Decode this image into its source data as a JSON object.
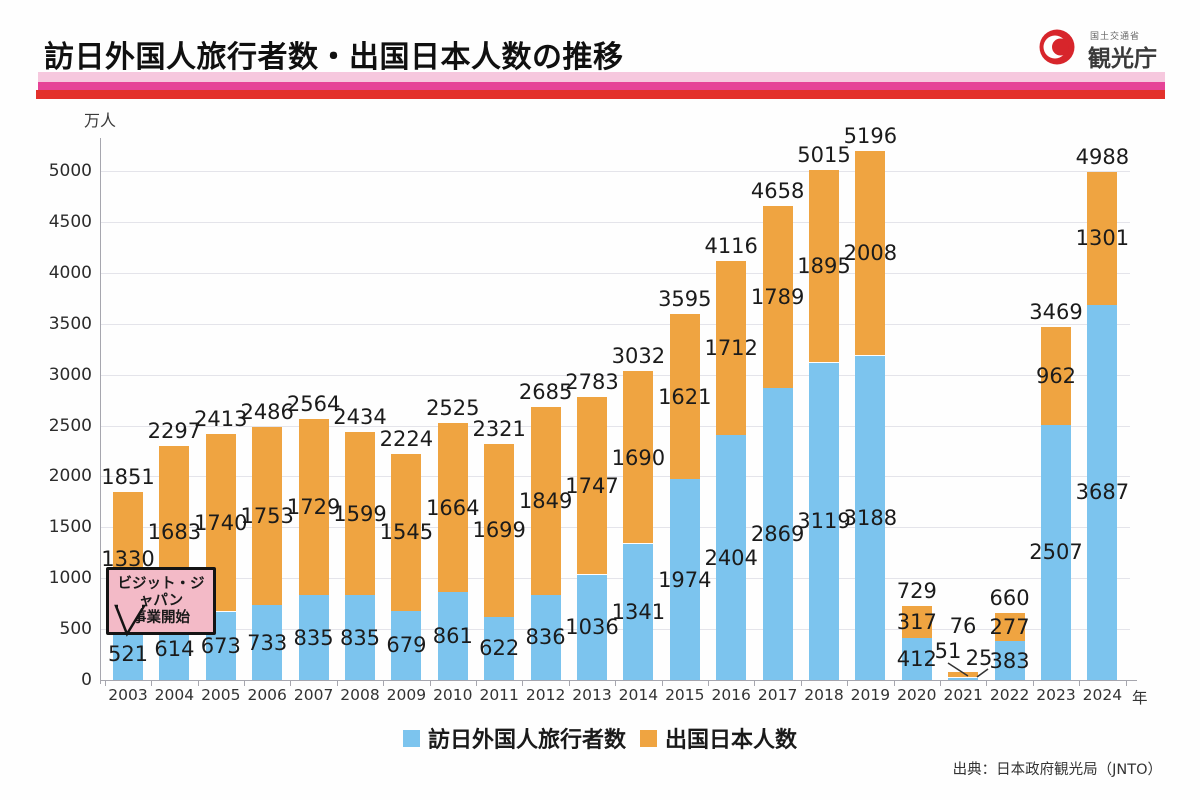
{
  "header": {
    "title": "訪日外国人旅行者数・出国日本人数の推移",
    "logo": {
      "ministry": "国土交通省",
      "agency": "観光庁"
    }
  },
  "chart": {
    "unit_label": "万人",
    "x_axis_suffix": "年",
    "callout": {
      "line1": "ビジット・ジャパン",
      "line2": "事業開始"
    }
  },
  "chart_data": {
    "type": "bar",
    "stacked": true,
    "title": "訪日外国人旅行者数・出国日本人数の推移",
    "categories": [
      2003,
      2004,
      2005,
      2006,
      2007,
      2008,
      2009,
      2010,
      2011,
      2012,
      2013,
      2014,
      2015,
      2016,
      2017,
      2018,
      2019,
      2020,
      2021,
      2022,
      2023,
      2024
    ],
    "series": [
      {
        "name": "訪日外国人旅行者数",
        "color": "#7cc4ee",
        "values": [
          521,
          614,
          673,
          733,
          835,
          835,
          679,
          861,
          622,
          836,
          1036,
          1341,
          1974,
          2404,
          2869,
          3119,
          3188,
          412,
          25,
          383,
          2507,
          3687
        ]
      },
      {
        "name": "出国日本人数",
        "color": "#efa441",
        "values": [
          1330,
          1683,
          1740,
          1753,
          1729,
          1599,
          1545,
          1664,
          1699,
          1849,
          1747,
          1690,
          1621,
          1712,
          1789,
          1895,
          2008,
          317,
          51,
          277,
          962,
          1301
        ]
      }
    ],
    "totals": [
      1851,
      2297,
      2413,
      2486,
      2564,
      2434,
      2224,
      2525,
      2321,
      2685,
      2783,
      3032,
      3595,
      4116,
      4658,
      5015,
      5196,
      729,
      76,
      660,
      3469,
      4988
    ],
    "ylabel": "万人",
    "xlabel": "年",
    "ylim": [
      0,
      5000
    ],
    "ytick_step": 500,
    "grid": true,
    "legend_position": "bottom"
  },
  "source": "出典：日本政府観光局（JNTO）"
}
